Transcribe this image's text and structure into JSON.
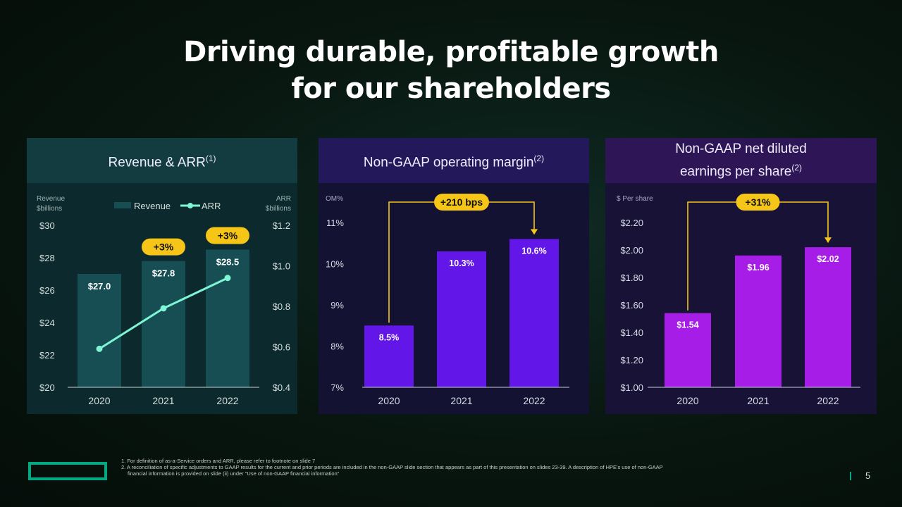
{
  "title": {
    "line1": "Driving durable, profitable growth",
    "line2": "for our shareholders"
  },
  "panels": {
    "revenue": {
      "heading": "Revenue & ARR",
      "sup": "(1)"
    },
    "margin": {
      "heading": "Non-GAAP operating margin",
      "sup": "(2)"
    },
    "eps": {
      "heading_line1": "Non-GAAP net diluted",
      "heading_line2": "earnings per share",
      "sup": "(2)"
    }
  },
  "chart_data": [
    {
      "type": "bar",
      "title": "Revenue & ARR(1)",
      "categories": [
        "2020",
        "2021",
        "2022"
      ],
      "ylabel_left": [
        "Revenue",
        "$billions"
      ],
      "ylabel_right": [
        "ARR",
        "$billions"
      ],
      "legend": [
        "Revenue",
        "ARR"
      ],
      "ylim": [
        20,
        30
      ],
      "yticks": [
        "$20",
        "$22",
        "$24",
        "$26",
        "$28",
        "$30"
      ],
      "ylim_right": [
        0.4,
        1.2
      ],
      "yticks_right": [
        "$0.4",
        "$0.6",
        "$0.8",
        "$1.0",
        "$1.2"
      ],
      "series": [
        {
          "name": "Revenue",
          "type": "bar",
          "values": [
            27.0,
            27.8,
            28.5
          ],
          "labels": [
            "$27.0",
            "$27.8",
            "$28.5"
          ]
        },
        {
          "name": "ARR",
          "type": "line",
          "axis": "right",
          "values": [
            0.59,
            0.79,
            0.94
          ]
        }
      ],
      "annotations": [
        {
          "text": "+3%",
          "category": "2021"
        },
        {
          "text": "+3%",
          "category": "2022"
        }
      ],
      "colors": {
        "bar": "#174e54",
        "line": "#7ff5d5",
        "badge": "#f5c518"
      }
    },
    {
      "type": "bar",
      "title": "Non-GAAP operating margin(2)",
      "categories": [
        "2020",
        "2021",
        "2022"
      ],
      "ylabel": "OM%",
      "ylim": [
        7,
        11
      ],
      "yticks": [
        "7%",
        "8%",
        "9%",
        "10%",
        "11%"
      ],
      "values": [
        8.5,
        10.3,
        10.6
      ],
      "labels": [
        "8.5%",
        "10.3%",
        "10.6%"
      ],
      "annotation": "+210 bps",
      "colors": {
        "bar": "#6316e8",
        "badge": "#f5c518"
      }
    },
    {
      "type": "bar",
      "title": "Non-GAAP net diluted earnings per share(2)",
      "categories": [
        "2020",
        "2021",
        "2022"
      ],
      "ylabel": "$ Per share",
      "ylim": [
        1.0,
        2.2
      ],
      "yticks": [
        "$1.00",
        "$1.20",
        "$1.40",
        "$1.60",
        "$1.80",
        "$2.00",
        "$2.20"
      ],
      "values": [
        1.54,
        1.96,
        2.02
      ],
      "labels": [
        "$1.54",
        "$1.96",
        "$2.02"
      ],
      "annotation": "+31%",
      "colors": {
        "bar": "#a51de6",
        "badge": "#f5c518"
      }
    }
  ],
  "footnotes": [
    "1. For definition of as-a-Service orders and ARR, please refer to footnote on slide 7",
    "2. A reconciliation of specific adjustments to GAAP results for the current and prior periods are included in the non-GAAP slide section that appears as part of this presentation on slides 23-39. A description of HPE's use of non-GAAP",
    "financial information is provided on slide (ii) under \"Use of non-GAAP financial information\""
  ],
  "page_number": "5",
  "logo": "hpe-logo"
}
